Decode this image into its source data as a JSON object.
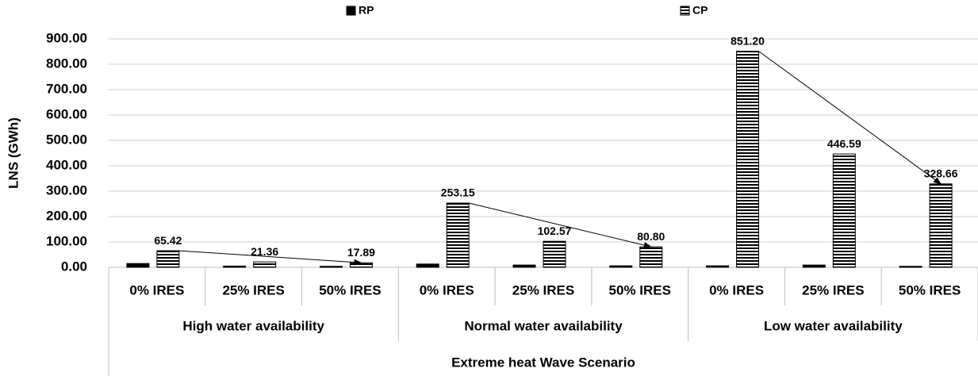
{
  "chart_data": {
    "type": "bar",
    "y_label": "LNS (GWh)",
    "x_label": "Extreme heat Wave Scenario",
    "groups": [
      "High water availability",
      "Normal water availability",
      "Low water availability"
    ],
    "categories": [
      "0% IRES",
      "25% IRES",
      "50% IRES",
      "0% IRES",
      "25% IRES",
      "50% IRES",
      "0% IRES",
      "25% IRES",
      "50% IRES"
    ],
    "series": [
      {
        "name": "RP",
        "color": "#000000",
        "pattern": "solid",
        "values": [
          15,
          5,
          4,
          13,
          9,
          6,
          6,
          9,
          4
        ]
      },
      {
        "name": "CP",
        "color": "#000000",
        "pattern": "horizontal-lines",
        "values": [
          65.42,
          21.36,
          17.89,
          253.15,
          102.57,
          80.8,
          851.2,
          446.59,
          328.66
        ],
        "value_labels": [
          "65.42",
          "21.36",
          "17.89",
          "253.15",
          "102.57",
          "80.80",
          "851.20",
          "446.59",
          "328.66"
        ]
      }
    ],
    "ylim": [
      0,
      900
    ],
    "yticks": [
      {
        "value": 0,
        "label": "0.00"
      },
      {
        "value": 100,
        "label": "100.00"
      },
      {
        "value": 200,
        "label": "200.00"
      },
      {
        "value": 300,
        "label": "300.00"
      },
      {
        "value": 400,
        "label": "400.00"
      },
      {
        "value": 500,
        "label": "500.00"
      },
      {
        "value": 600,
        "label": "600.00"
      },
      {
        "value": 700,
        "label": "700.00"
      },
      {
        "value": 800,
        "label": "800.00"
      },
      {
        "value": 900,
        "label": "900.00"
      }
    ],
    "grid": true,
    "legend": "top"
  }
}
